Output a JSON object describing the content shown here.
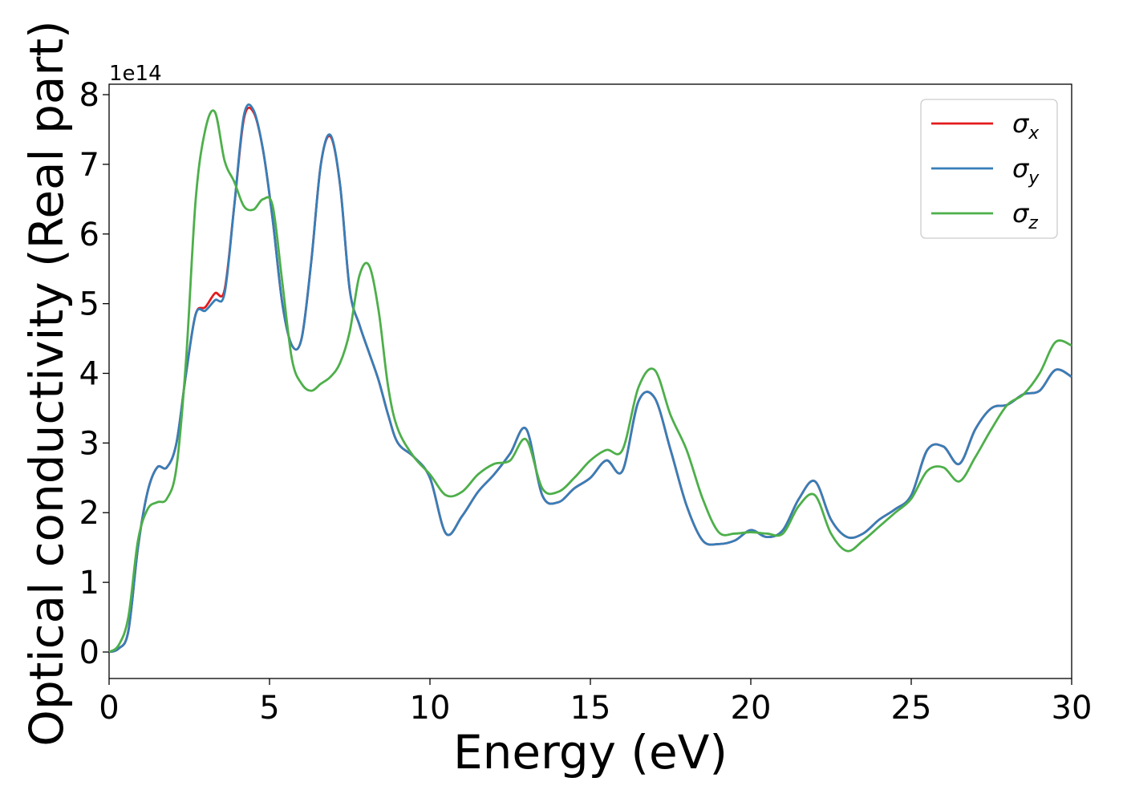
{
  "chart_data": {
    "type": "line",
    "title": "",
    "xlabel": "Energy (eV)",
    "ylabel": "Optical conductivity (Real part)",
    "y_offset_text": "1e14",
    "y_scale_factor": 100000000000000.0,
    "xlim": [
      0,
      30
    ],
    "ylim": [
      -0.38,
      8.15
    ],
    "x_ticks": [
      0,
      5,
      10,
      15,
      20,
      25,
      30
    ],
    "y_ticks": [
      0,
      1,
      2,
      3,
      4,
      5,
      6,
      7,
      8
    ],
    "grid": false,
    "legend": {
      "position": "top-right",
      "labels": [
        "σ",
        "σ",
        "σ"
      ],
      "subscripts": [
        "x",
        "y",
        "z"
      ]
    },
    "series": [
      {
        "legend_symbol": "σ",
        "legend_subscript": "x",
        "color": "#e41a1c",
        "x": [
          0,
          0.3,
          0.6,
          0.9,
          1.2,
          1.5,
          1.8,
          2.1,
          2.4,
          2.7,
          3.0,
          3.3,
          3.6,
          3.9,
          4.2,
          4.5,
          4.8,
          5.1,
          5.4,
          5.7,
          6.0,
          6.3,
          6.6,
          6.9,
          7.2,
          7.5,
          7.8,
          8.1,
          8.4,
          8.7,
          9.0,
          9.5,
          10.0,
          10.5,
          11.0,
          11.5,
          12.0,
          12.5,
          13.0,
          13.5,
          14.0,
          14.5,
          15.0,
          15.5,
          16.0,
          16.5,
          17.0,
          17.5,
          18.0,
          18.5,
          19.0,
          19.5,
          20.0,
          20.5,
          21.0,
          21.5,
          22.0,
          22.5,
          23.0,
          23.5,
          24.0,
          24.5,
          25.0,
          25.5,
          26.0,
          26.5,
          27.0,
          27.5,
          28.0,
          28.5,
          29.0,
          29.5,
          30.0
        ],
        "y": [
          0,
          0.05,
          0.3,
          1.5,
          2.3,
          2.65,
          2.65,
          3.0,
          4.0,
          4.85,
          4.95,
          5.15,
          5.2,
          6.4,
          7.65,
          7.75,
          7.2,
          6.2,
          5.0,
          4.4,
          4.5,
          5.6,
          7.0,
          7.4,
          6.7,
          5.2,
          4.7,
          4.3,
          3.9,
          3.4,
          3.0,
          2.8,
          2.5,
          1.7,
          1.95,
          2.3,
          2.55,
          2.85,
          3.2,
          2.25,
          2.15,
          2.35,
          2.5,
          2.75,
          2.6,
          3.6,
          3.65,
          2.9,
          2.1,
          1.6,
          1.55,
          1.6,
          1.75,
          1.65,
          1.75,
          2.2,
          2.45,
          1.9,
          1.65,
          1.7,
          1.9,
          2.05,
          2.25,
          2.9,
          2.95,
          2.7,
          3.2,
          3.5,
          3.55,
          3.7,
          3.75,
          4.05,
          3.95
        ]
      },
      {
        "legend_symbol": "σ",
        "legend_subscript": "y",
        "color": "#377eb8",
        "x": [
          0,
          0.3,
          0.6,
          0.9,
          1.2,
          1.5,
          1.8,
          2.1,
          2.4,
          2.7,
          3.0,
          3.3,
          3.6,
          3.9,
          4.2,
          4.5,
          4.8,
          5.1,
          5.4,
          5.7,
          6.0,
          6.3,
          6.6,
          6.9,
          7.2,
          7.5,
          7.8,
          8.1,
          8.4,
          8.7,
          9.0,
          9.5,
          10.0,
          10.5,
          11.0,
          11.5,
          12.0,
          12.5,
          13.0,
          13.5,
          14.0,
          14.5,
          15.0,
          15.5,
          16.0,
          16.5,
          17.0,
          17.5,
          18.0,
          18.5,
          19.0,
          19.5,
          20.0,
          20.5,
          21.0,
          21.5,
          22.0,
          22.5,
          23.0,
          23.5,
          24.0,
          24.5,
          25.0,
          25.5,
          26.0,
          26.5,
          27.0,
          27.5,
          28.0,
          28.5,
          29.0,
          29.5,
          30.0
        ],
        "y": [
          0,
          0.05,
          0.3,
          1.5,
          2.3,
          2.65,
          2.65,
          3.0,
          4.0,
          4.85,
          4.9,
          5.05,
          5.15,
          6.4,
          7.7,
          7.78,
          7.2,
          6.2,
          5.0,
          4.4,
          4.5,
          5.6,
          7.0,
          7.42,
          6.7,
          5.2,
          4.7,
          4.3,
          3.9,
          3.4,
          3.0,
          2.8,
          2.5,
          1.7,
          1.95,
          2.3,
          2.55,
          2.85,
          3.2,
          2.25,
          2.15,
          2.35,
          2.5,
          2.75,
          2.6,
          3.6,
          3.65,
          2.9,
          2.1,
          1.6,
          1.55,
          1.6,
          1.75,
          1.65,
          1.75,
          2.2,
          2.45,
          1.9,
          1.65,
          1.7,
          1.9,
          2.05,
          2.25,
          2.9,
          2.95,
          2.7,
          3.2,
          3.5,
          3.55,
          3.7,
          3.75,
          4.05,
          3.95
        ]
      },
      {
        "legend_symbol": "σ",
        "legend_subscript": "z",
        "color": "#4daf4a",
        "x": [
          0,
          0.3,
          0.6,
          0.9,
          1.2,
          1.5,
          1.8,
          2.1,
          2.4,
          2.7,
          3.0,
          3.3,
          3.6,
          3.9,
          4.2,
          4.5,
          4.8,
          5.1,
          5.4,
          5.7,
          6.0,
          6.3,
          6.6,
          6.9,
          7.2,
          7.5,
          7.8,
          8.1,
          8.4,
          8.7,
          9.0,
          9.5,
          10.0,
          10.5,
          11.0,
          11.5,
          12.0,
          12.5,
          13.0,
          13.5,
          14.0,
          14.5,
          15.0,
          15.5,
          16.0,
          16.5,
          17.0,
          17.5,
          18.0,
          18.5,
          19.0,
          19.5,
          20.0,
          20.5,
          21.0,
          21.5,
          22.0,
          22.5,
          23.0,
          23.5,
          24.0,
          24.5,
          25.0,
          25.5,
          26.0,
          26.5,
          27.0,
          27.5,
          28.0,
          28.5,
          29.0,
          29.5,
          30.0
        ],
        "y": [
          0,
          0.1,
          0.5,
          1.6,
          2.05,
          2.15,
          2.2,
          2.65,
          4.2,
          6.5,
          7.5,
          7.75,
          7.05,
          6.75,
          6.4,
          6.35,
          6.5,
          6.4,
          5.3,
          4.2,
          3.85,
          3.75,
          3.85,
          3.95,
          4.15,
          4.6,
          5.4,
          5.55,
          4.9,
          3.8,
          3.2,
          2.8,
          2.55,
          2.25,
          2.3,
          2.55,
          2.7,
          2.75,
          3.05,
          2.35,
          2.3,
          2.5,
          2.75,
          2.9,
          2.9,
          3.8,
          4.05,
          3.4,
          2.9,
          2.2,
          1.72,
          1.7,
          1.72,
          1.7,
          1.7,
          2.1,
          2.25,
          1.7,
          1.45,
          1.6,
          1.8,
          2.0,
          2.2,
          2.6,
          2.65,
          2.45,
          2.8,
          3.2,
          3.55,
          3.7,
          4.0,
          4.45,
          4.4
        ]
      }
    ]
  }
}
